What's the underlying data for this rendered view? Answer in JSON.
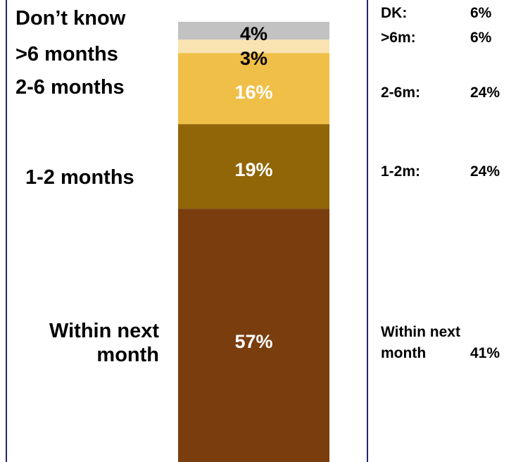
{
  "chart_data": {
    "type": "bar",
    "stacked": true,
    "categories": [
      "Within next month",
      "1-2 months",
      "2-6 months",
      ">6 months",
      "Don’t know"
    ],
    "category_labels": [
      "Within next\nmonth",
      "1-2 months",
      "2-6 months",
      ">6 months",
      "Don’t know"
    ],
    "values": [
      57,
      19,
      16,
      3,
      4
    ],
    "value_labels": [
      "57%",
      "19%",
      "16%",
      "3%",
      "4%"
    ],
    "colors": [
      "#7a3d0e",
      "#906608",
      "#f0bf48",
      "#f9e4b1",
      "#c2c2c2"
    ],
    "label_colors": [
      "#ffffff",
      "#ffffff",
      "#ffffff",
      "#000000",
      "#000000"
    ],
    "grid": false
  },
  "comparison": [
    {
      "label": "DK:",
      "value": "6%"
    },
    {
      "label": ">6m:",
      "value": "6%"
    },
    {
      "label": "2-6m:",
      "value": "24%"
    },
    {
      "label": "1-2m:",
      "value": "24%"
    },
    {
      "label": "Within next\nmonth",
      "value": "41%"
    }
  ]
}
